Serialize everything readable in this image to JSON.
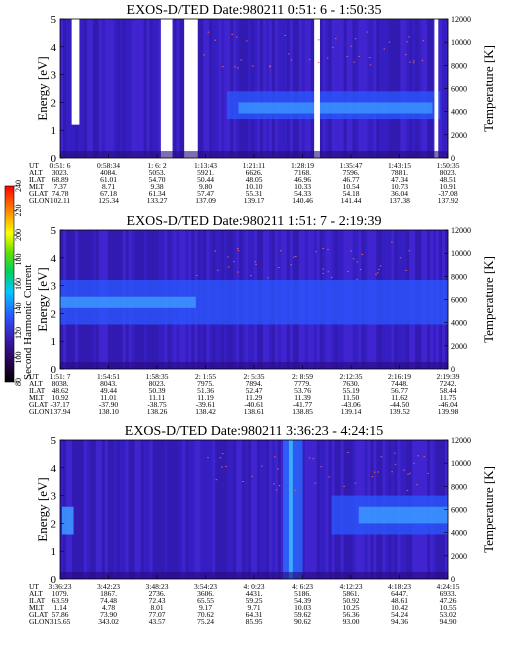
{
  "colorbar": {
    "label": "Second Harmonic Current",
    "ticks": [
      "80",
      "100",
      "120",
      "140",
      "160",
      "180",
      "200",
      "220",
      "240"
    ]
  },
  "chart_data": [
    {
      "type": "heatmap",
      "title": "EXOS-D/TED   Date:980211   0:51: 6 - 1:50:35",
      "ylabel": "Energy [eV]",
      "y2label": "Temperature [K]",
      "ylim": [
        0,
        5
      ],
      "y2lim": [
        0,
        12000
      ],
      "yticks": [
        "0",
        "1",
        "2",
        "3",
        "4",
        "5"
      ],
      "y2ticks": [
        "0",
        "2000",
        "4000",
        "6000",
        "8000",
        "10000",
        "12000"
      ],
      "orbit_rows": [
        {
          "label": "UT",
          "values": [
            "0:51: 6",
            "0:58:34",
            "1: 6: 2",
            "1:13:43",
            "1:21:11",
            "1:28:19",
            "1:35:47",
            "1:43:15",
            "1:50:35"
          ]
        },
        {
          "label": "ALT",
          "values": [
            "3023.",
            "4084.",
            "5053.",
            "5921.",
            "6626.",
            "7168.",
            "7596.",
            "7881.",
            "8023."
          ]
        },
        {
          "label": "ILAT",
          "values": [
            "68.89",
            "61.01",
            "54.70",
            "50.44",
            "48.05",
            "46.96",
            "46.77",
            "47.34",
            "48.51"
          ]
        },
        {
          "label": "MLT",
          "values": [
            "7.37",
            "8.71",
            "9.38",
            "9.80",
            "10.10",
            "10.33",
            "10.54",
            "10.73",
            "10.91"
          ]
        },
        {
          "label": "GLAT",
          "values": [
            "74.78",
            "67.18",
            "61.34",
            "57.47",
            "55.31",
            "54.33",
            "54.18",
            "36.04",
            "-37.08"
          ]
        },
        {
          "label": "GLON",
          "values": [
            "102.11",
            "125.34",
            "133.27",
            "137.09",
            "139.17",
            "140.46",
            "141.44",
            "137.38",
            "137.92"
          ]
        }
      ]
    },
    {
      "type": "heatmap",
      "title": "EXOS-D/TED   Date:980211   1:51: 7 - 2:19:39",
      "ylabel": "Energy [eV]",
      "y2label": "Temperature [K]",
      "ylim": [
        0,
        5
      ],
      "y2lim": [
        0,
        12000
      ],
      "yticks": [
        "0",
        "1",
        "2",
        "3",
        "4",
        "5"
      ],
      "y2ticks": [
        "0",
        "2000",
        "4000",
        "6000",
        "8000",
        "10000",
        "12000"
      ],
      "orbit_rows": [
        {
          "label": "UT",
          "values": [
            "1:51: 7",
            "1:54:51",
            "1:58:35",
            "2: 1:55",
            "2: 5:35",
            "2: 8:59",
            "2:12:35",
            "2:16:19",
            "2:19:39"
          ]
        },
        {
          "label": "ALT",
          "values": [
            "8038.",
            "8043.",
            "8023.",
            "7975.",
            "7894.",
            "7779.",
            "7630.",
            "7448.",
            "7242."
          ]
        },
        {
          "label": "ILAT",
          "values": [
            "48.62",
            "49.44",
            "50.39",
            "51.36",
            "52.47",
            "53.76",
            "55.19",
            "56.77",
            "58.44"
          ]
        },
        {
          "label": "MLT",
          "values": [
            "10.92",
            "11.01",
            "11.11",
            "11.19",
            "11.29",
            "11.39",
            "11.50",
            "11.62",
            "11.75"
          ]
        },
        {
          "label": "GLAT",
          "values": [
            "-37.17",
            "-37.90",
            "-38.75",
            "-39.61",
            "-40.61",
            "-41.77",
            "-43.06",
            "-44.50",
            "-46.04"
          ]
        },
        {
          "label": "GLON",
          "values": [
            "137.94",
            "138.10",
            "138.26",
            "138.42",
            "138.61",
            "138.85",
            "139.14",
            "139.52",
            "139.98"
          ]
        }
      ]
    },
    {
      "type": "heatmap",
      "title": "EXOS-D/TED   Date:980211   3:36:23 - 4:24:15",
      "ylabel": "Energy [eV]",
      "y2label": "Temperature [K]",
      "ylim": [
        0,
        5
      ],
      "y2lim": [
        0,
        12000
      ],
      "yticks": [
        "0",
        "1",
        "2",
        "3",
        "4",
        "5"
      ],
      "y2ticks": [
        "0",
        "2000",
        "4000",
        "6000",
        "8000",
        "10000",
        "12000"
      ],
      "orbit_rows": [
        {
          "label": "UT",
          "values": [
            "3:36:23",
            "3:42:23",
            "3:48:23",
            "3:54:23",
            "4: 0:23",
            "4: 6:23",
            "4:12:23",
            "4:18:23",
            "4:24:15"
          ]
        },
        {
          "label": "ALT",
          "values": [
            "1079.",
            "1867.",
            "2736.",
            "3606.",
            "4431.",
            "5186.",
            "5861.",
            "6447.",
            "6933."
          ]
        },
        {
          "label": "ILAT",
          "values": [
            "63.59",
            "74.48",
            "72.43",
            "65.55",
            "59.25",
            "54.39",
            "50.92",
            "48.61",
            "47.26"
          ]
        },
        {
          "label": "MLT",
          "values": [
            "1.14",
            "4.78",
            "8.01",
            "9.17",
            "9.71",
            "10.03",
            "10.25",
            "10.42",
            "10.55"
          ]
        },
        {
          "label": "GLAT",
          "values": [
            "57.86",
            "73.90",
            "77.07",
            "70.62",
            "64.31",
            "59.62",
            "56.36",
            "54.24",
            "53.02"
          ]
        },
        {
          "label": "GLON",
          "values": [
            "315.65",
            "343.02",
            "43.57",
            "75.24",
            "85.95",
            "90.62",
            "93.00",
            "94.36",
            "94.90"
          ]
        }
      ]
    }
  ]
}
